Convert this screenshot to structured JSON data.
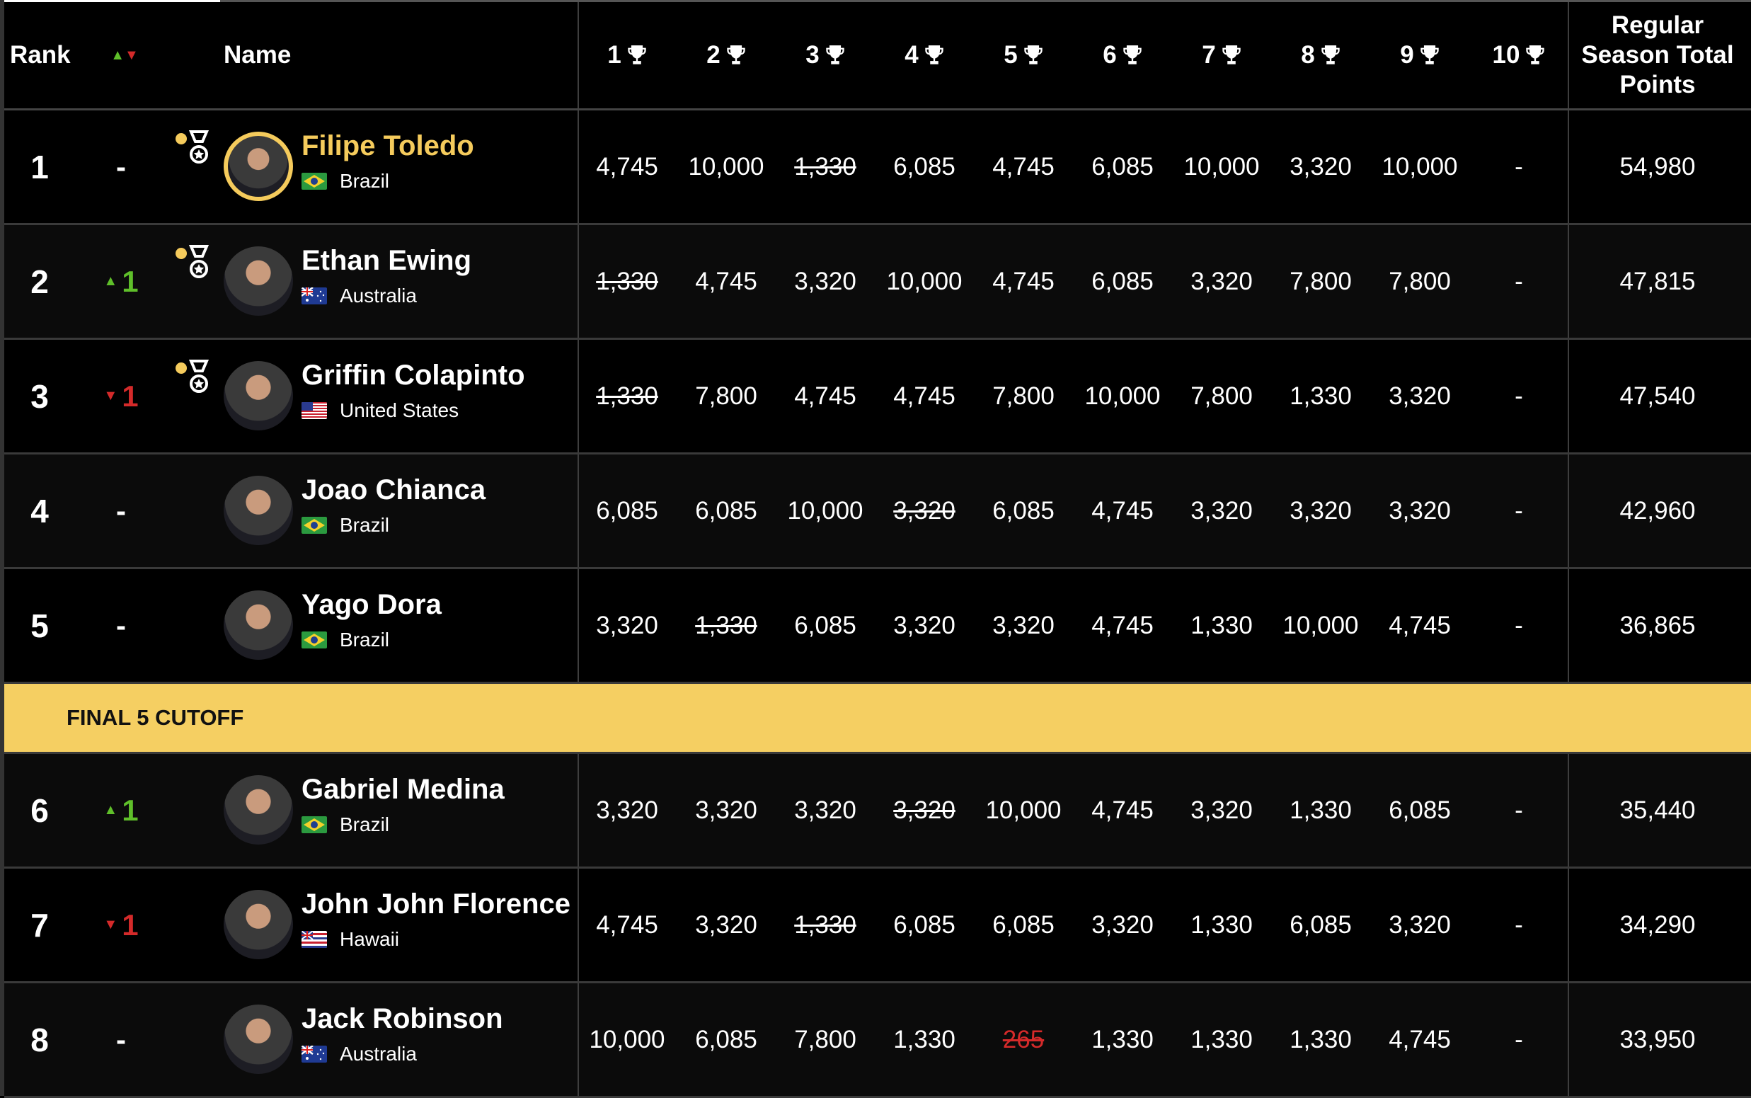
{
  "header": {
    "rank": "Rank",
    "name": "Name",
    "stages": [
      "1",
      "2",
      "3",
      "4",
      "5",
      "6",
      "7",
      "8",
      "9",
      "10"
    ],
    "total": "Regular Season Total Points",
    "trophy_icon": "trophy-icon"
  },
  "colors": {
    "gold": "#f5cb5c",
    "up": "#5fbf2a",
    "down": "#d42a2a",
    "cutoff": "#f5cf62"
  },
  "cutoff": {
    "label": "FINAL 5 CUTOFF",
    "after_rank": 5
  },
  "rows": [
    {
      "rank": "1",
      "change": {
        "dir": "none",
        "value": "-"
      },
      "name": "Filipe Toledo",
      "country": "Brazil",
      "flag": "brazil",
      "medal": true,
      "leader": true,
      "scores": [
        {
          "v": "4,745"
        },
        {
          "v": "10,000"
        },
        {
          "v": "1,330",
          "dropped": true
        },
        {
          "v": "6,085"
        },
        {
          "v": "4,745"
        },
        {
          "v": "6,085"
        },
        {
          "v": "10,000"
        },
        {
          "v": "3,320"
        },
        {
          "v": "10,000"
        },
        {
          "v": "-"
        }
      ],
      "total": "54,980"
    },
    {
      "rank": "2",
      "change": {
        "dir": "up",
        "value": "1"
      },
      "name": "Ethan Ewing",
      "country": "Australia",
      "flag": "australia",
      "medal": true,
      "scores": [
        {
          "v": "1,330",
          "dropped": true
        },
        {
          "v": "4,745"
        },
        {
          "v": "3,320"
        },
        {
          "v": "10,000"
        },
        {
          "v": "4,745"
        },
        {
          "v": "6,085"
        },
        {
          "v": "3,320"
        },
        {
          "v": "7,800"
        },
        {
          "v": "7,800"
        },
        {
          "v": "-"
        }
      ],
      "total": "47,815"
    },
    {
      "rank": "3",
      "change": {
        "dir": "down",
        "value": "1"
      },
      "name": "Griffin Colapinto",
      "country": "United States",
      "flag": "usa",
      "medal": true,
      "scores": [
        {
          "v": "1,330",
          "dropped": true
        },
        {
          "v": "7,800"
        },
        {
          "v": "4,745"
        },
        {
          "v": "4,745"
        },
        {
          "v": "7,800"
        },
        {
          "v": "10,000"
        },
        {
          "v": "7,800"
        },
        {
          "v": "1,330"
        },
        {
          "v": "3,320"
        },
        {
          "v": "-"
        }
      ],
      "total": "47,540"
    },
    {
      "rank": "4",
      "change": {
        "dir": "none",
        "value": "-"
      },
      "name": "Joao Chianca",
      "country": "Brazil",
      "flag": "brazil",
      "scores": [
        {
          "v": "6,085"
        },
        {
          "v": "6,085"
        },
        {
          "v": "10,000"
        },
        {
          "v": "3,320",
          "dropped": true
        },
        {
          "v": "6,085"
        },
        {
          "v": "4,745"
        },
        {
          "v": "3,320"
        },
        {
          "v": "3,320"
        },
        {
          "v": "3,320"
        },
        {
          "v": "-"
        }
      ],
      "total": "42,960"
    },
    {
      "rank": "5",
      "change": {
        "dir": "none",
        "value": "-"
      },
      "name": "Yago Dora",
      "country": "Brazil",
      "flag": "brazil",
      "scores": [
        {
          "v": "3,320"
        },
        {
          "v": "1,330",
          "dropped": true
        },
        {
          "v": "6,085"
        },
        {
          "v": "3,320"
        },
        {
          "v": "3,320"
        },
        {
          "v": "4,745"
        },
        {
          "v": "1,330"
        },
        {
          "v": "10,000"
        },
        {
          "v": "4,745"
        },
        {
          "v": "-"
        }
      ],
      "total": "36,865"
    },
    {
      "rank": "6",
      "change": {
        "dir": "up",
        "value": "1"
      },
      "name": "Gabriel Medina",
      "country": "Brazil",
      "flag": "brazil",
      "scores": [
        {
          "v": "3,320"
        },
        {
          "v": "3,320"
        },
        {
          "v": "3,320"
        },
        {
          "v": "3,320",
          "dropped": true
        },
        {
          "v": "10,000"
        },
        {
          "v": "4,745"
        },
        {
          "v": "3,320"
        },
        {
          "v": "1,330"
        },
        {
          "v": "6,085"
        },
        {
          "v": "-"
        }
      ],
      "total": "35,440"
    },
    {
      "rank": "7",
      "change": {
        "dir": "down",
        "value": "1"
      },
      "name": "John John Florence",
      "country": "Hawaii",
      "flag": "hawaii",
      "scores": [
        {
          "v": "4,745"
        },
        {
          "v": "3,320"
        },
        {
          "v": "1,330",
          "dropped": true
        },
        {
          "v": "6,085"
        },
        {
          "v": "6,085"
        },
        {
          "v": "3,320"
        },
        {
          "v": "1,330"
        },
        {
          "v": "6,085"
        },
        {
          "v": "3,320"
        },
        {
          "v": "-"
        }
      ],
      "total": "34,290"
    },
    {
      "rank": "8",
      "change": {
        "dir": "none",
        "value": "-"
      },
      "name": "Jack Robinson",
      "country": "Australia",
      "flag": "australia",
      "scores": [
        {
          "v": "10,000"
        },
        {
          "v": "6,085"
        },
        {
          "v": "7,800"
        },
        {
          "v": "1,330"
        },
        {
          "v": "265",
          "dropped": true,
          "red": true
        },
        {
          "v": "1,330"
        },
        {
          "v": "1,330"
        },
        {
          "v": "1,330"
        },
        {
          "v": "4,745"
        },
        {
          "v": "-"
        }
      ],
      "total": "33,950"
    }
  ]
}
